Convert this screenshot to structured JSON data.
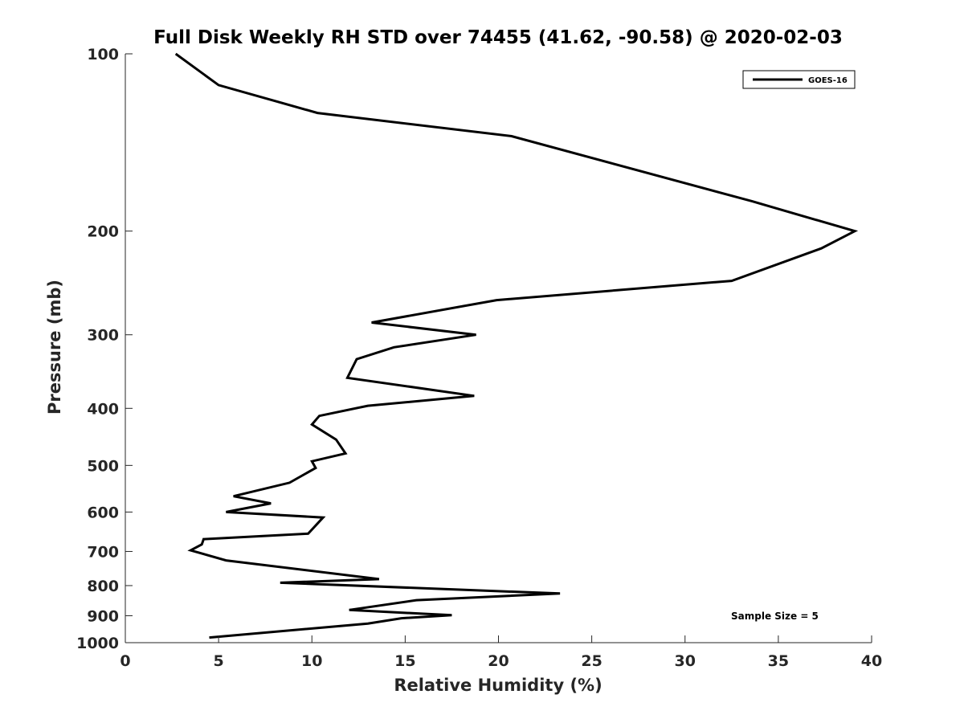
{
  "chart_data": {
    "type": "line",
    "title": "Full Disk Weekly RH STD over 74455 (41.62, -90.58) @ 2020-02-03",
    "xlabel": "Relative Humidity (%)",
    "ylabel": "Pressure (mb)",
    "xlim": [
      0,
      40
    ],
    "ylim": [
      1000,
      100
    ],
    "yscale": "log",
    "xticks": [
      0,
      5,
      10,
      15,
      20,
      25,
      30,
      35,
      40
    ],
    "yticks": [
      100,
      200,
      300,
      400,
      500,
      600,
      700,
      800,
      900,
      1000
    ],
    "grid": false,
    "legend_position": "top-right",
    "annotations": [
      "Sample Size = 5"
    ],
    "series": [
      {
        "name": "GOES-16",
        "color": "#000000",
        "x": [
          2.7,
          5.0,
          10.3,
          20.7,
          33.6,
          39.1,
          37.3,
          32.5,
          19.9,
          13.2,
          18.8,
          14.4,
          12.4,
          11.9,
          18.7,
          13.0,
          10.4,
          10.0,
          11.3,
          11.8,
          10.0,
          10.2,
          8.8,
          5.8,
          7.8,
          5.4,
          10.6,
          9.8,
          4.2,
          4.1,
          3.5,
          5.4,
          13.6,
          8.3,
          23.3,
          15.6,
          12.0,
          17.5,
          14.8,
          13.0,
          4.5
        ],
        "y": [
          100,
          113,
          126,
          138,
          178,
          200,
          214,
          243,
          262,
          286,
          300,
          315,
          330,
          355,
          381,
          396,
          412,
          426,
          452,
          477,
          492,
          505,
          535,
          564,
          580,
          600,
          613,
          653,
          667,
          681,
          697,
          725,
          780,
          791,
          825,
          847,
          880,
          898,
          909,
          928,
          980
        ]
      }
    ]
  }
}
